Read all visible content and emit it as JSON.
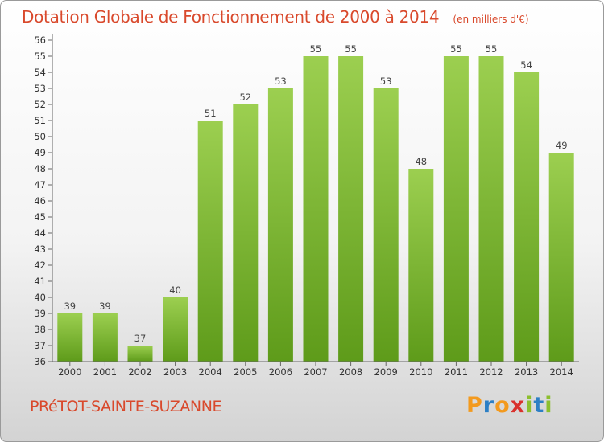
{
  "header": {
    "title": "Dotation Globale de Fonctionnement de 2000 à 2014",
    "unit": "(en milliers d'€)"
  },
  "footer": {
    "commune": "PRéTOT-SAINTE-SUZANNE",
    "logo_letters": [
      "P",
      "r",
      "o",
      "x",
      "i",
      "t",
      "i"
    ],
    "logo_colors": [
      "#f39a1e",
      "#2c7fc5",
      "#f39a1e",
      "#d9312d",
      "#8cbf2e",
      "#2c7fc5",
      "#8cbf2e"
    ]
  },
  "colors": {
    "bar_top": "#9ccf50",
    "bar_bottom": "#5e9b1a",
    "title": "#d9492c"
  },
  "chart_data": {
    "type": "bar",
    "title": "Dotation Globale de Fonctionnement de 2000 à 2014",
    "subtitle": "(en milliers d'€)",
    "categories": [
      "2000",
      "2001",
      "2002",
      "2003",
      "2004",
      "2005",
      "2006",
      "2007",
      "2008",
      "2009",
      "2010",
      "2011",
      "2012",
      "2013",
      "2014"
    ],
    "values": [
      39,
      39,
      37,
      40,
      51,
      52,
      53,
      55,
      55,
      53,
      48,
      55,
      55,
      54,
      49
    ],
    "ylim": [
      36,
      56
    ],
    "yticks": [
      36,
      37,
      38,
      39,
      40,
      41,
      42,
      43,
      44,
      45,
      46,
      47,
      48,
      49,
      50,
      51,
      52,
      53,
      54,
      55,
      56
    ],
    "grid": false,
    "data_labels": true
  }
}
